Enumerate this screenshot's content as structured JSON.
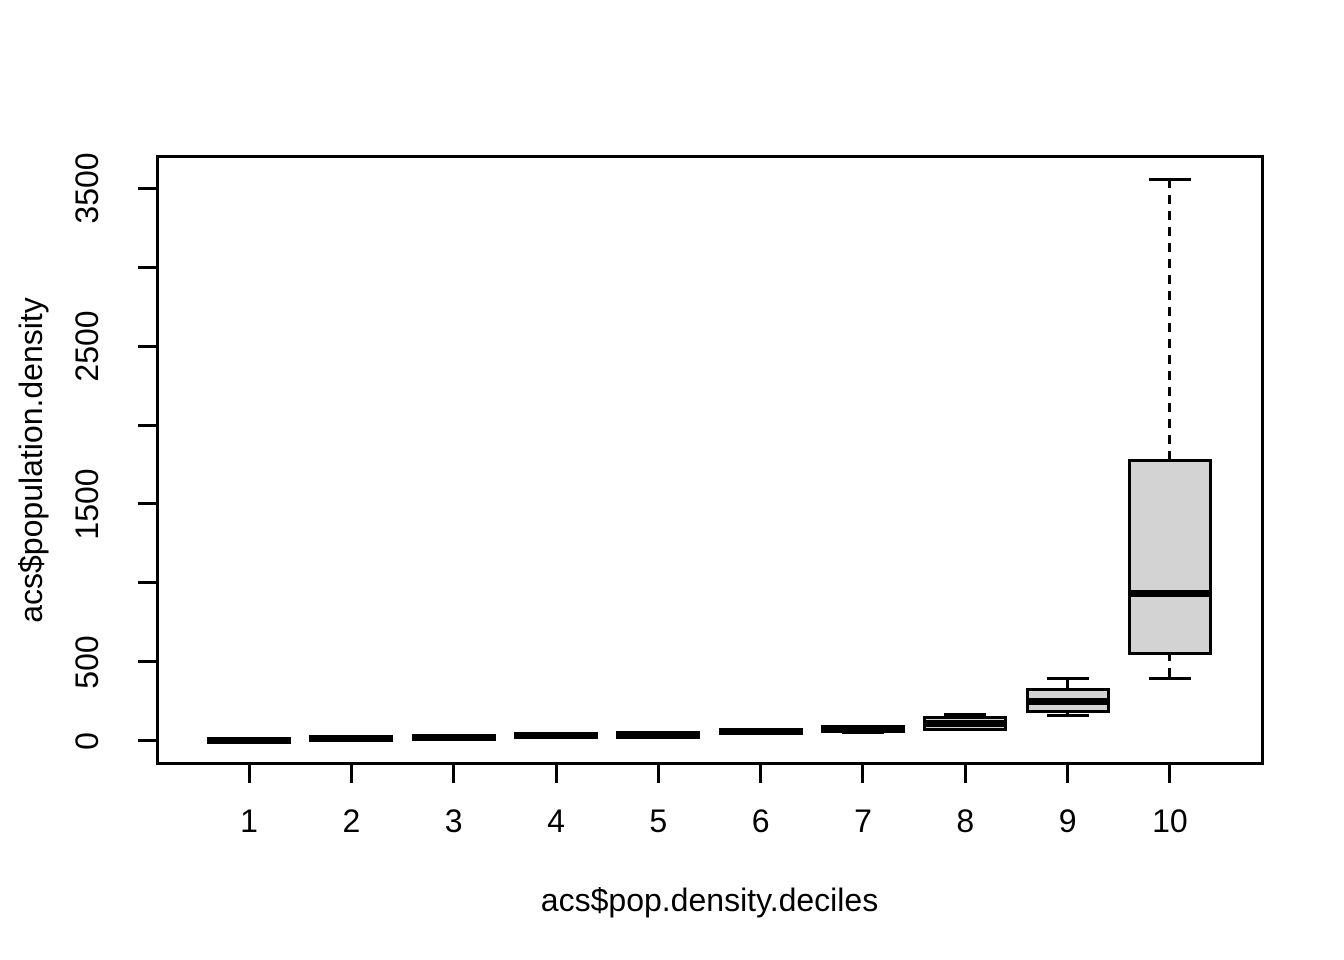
{
  "figure": {
    "background_color": "#ffffff",
    "text_color": "#000000"
  },
  "chart_data": {
    "type": "boxplot",
    "title": "",
    "xlabel": "acs$pop.density.deciles",
    "ylabel": "acs$population.density",
    "categories": [
      "1",
      "2",
      "3",
      "4",
      "5",
      "6",
      "7",
      "8",
      "9",
      "10"
    ],
    "y_axis": {
      "ticks": [
        {
          "value": 0,
          "label": "0"
        },
        {
          "value": 500,
          "label": "500"
        },
        {
          "value": 1000,
          "label": ""
        },
        {
          "value": 1500,
          "label": "1500"
        },
        {
          "value": 2000,
          "label": ""
        },
        {
          "value": 2500,
          "label": "2500"
        },
        {
          "value": 3000,
          "label": ""
        },
        {
          "value": 3500,
          "label": "3500"
        }
      ],
      "data_range": [
        0,
        3557
      ],
      "grid": false
    },
    "x_axis": {
      "positions": [
        1,
        2,
        3,
        4,
        5,
        6,
        7,
        8,
        9,
        10
      ],
      "range": [
        0.1,
        10.9
      ]
    },
    "legend": null,
    "series": [
      {
        "category": "1",
        "whisker_low": 1,
        "q1": 2,
        "median": 4,
        "q3": 7,
        "whisker_high": 10,
        "outliers": []
      },
      {
        "category": "2",
        "whisker_low": 9,
        "q1": 12,
        "median": 15,
        "q3": 18,
        "whisker_high": 22,
        "outliers": []
      },
      {
        "category": "3",
        "whisker_low": 14,
        "q1": 17,
        "median": 20,
        "q3": 24,
        "whisker_high": 28,
        "outliers": []
      },
      {
        "category": "4",
        "whisker_low": 24,
        "q1": 28,
        "median": 31,
        "q3": 35,
        "whisker_high": 40,
        "outliers": []
      },
      {
        "category": "5",
        "whisker_low": 29,
        "q1": 33,
        "median": 36,
        "q3": 40,
        "whisker_high": 45,
        "outliers": []
      },
      {
        "category": "6",
        "whisker_low": 47,
        "q1": 53,
        "median": 58,
        "q3": 64,
        "whisker_high": 71,
        "outliers": []
      },
      {
        "category": "7",
        "whisker_low": 55,
        "q1": 66,
        "median": 73,
        "q3": 81,
        "whisker_high": 92,
        "outliers": []
      },
      {
        "category": "8",
        "whisker_low": 71,
        "q1": 81,
        "median": 110,
        "q3": 139,
        "whisker_high": 166,
        "outliers": []
      },
      {
        "category": "9",
        "whisker_low": 158,
        "q1": 196,
        "median": 249,
        "q3": 312,
        "whisker_high": 392,
        "outliers": []
      },
      {
        "category": "10",
        "whisker_low": 397,
        "q1": 563,
        "median": 933,
        "q3": 1763,
        "whisker_high": 3557,
        "outliers": []
      }
    ],
    "style": {
      "box_fill": "#d3d3d3",
      "line_color": "#000000",
      "whisker_style": "dashed"
    }
  }
}
